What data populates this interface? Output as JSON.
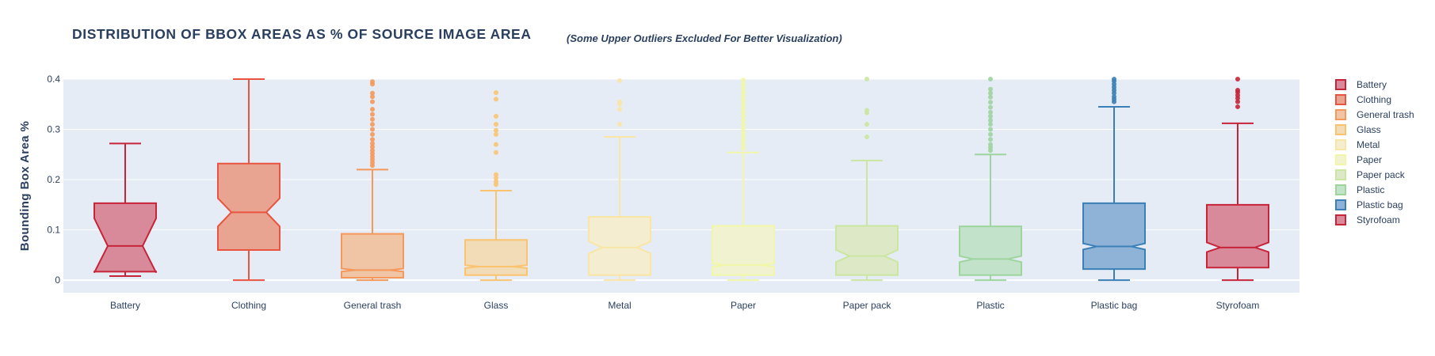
{
  "chart_data": {
    "type": "box",
    "title": "DISTRIBUTION OF BBOX AREAS AS % OF SOURCE IMAGE AREA",
    "subtitle": "(Some Upper Outliers Excluded For Better Visualization)",
    "ylabel": "Bounding Box Area %",
    "xlabel": "",
    "ylim": [
      -0.025,
      0.4
    ],
    "yticks": [
      0,
      0.1,
      0.2,
      0.3,
      0.4
    ],
    "ytick_labels": [
      "0",
      "0.1",
      "0.2",
      "0.3",
      "0.4"
    ],
    "notched": true,
    "grid": true,
    "legend_position": "right",
    "categories": [
      "Battery",
      "Clothing",
      "General trash",
      "Glass",
      "Metal",
      "Paper",
      "Paper pack",
      "Plastic",
      "Plastic bag",
      "Styrofoam"
    ],
    "series": [
      {
        "name": "Battery",
        "color": "#c7243a",
        "fill": "#d98a9a",
        "fill_opacity": 1.0,
        "min": 0.008,
        "q1": 0.017,
        "median": 0.068,
        "q3": 0.153,
        "max": 0.272,
        "notch_low": 0.015,
        "notch_high": 0.123,
        "outliers": []
      },
      {
        "name": "Clothing",
        "color": "#e8543f",
        "fill": "#e9a391",
        "fill_opacity": 1.0,
        "min": 0.0,
        "q1": 0.06,
        "median": 0.135,
        "q3": 0.232,
        "max": 0.4,
        "notch_low": 0.107,
        "notch_high": 0.163,
        "outliers": []
      },
      {
        "name": "General trash",
        "color": "#f5985a",
        "fill": "#efc5a5",
        "fill_opacity": 1.0,
        "min": 0.0,
        "q1": 0.005,
        "median": 0.02,
        "q3": 0.092,
        "max": 0.22,
        "notch_low": 0.017,
        "notch_high": 0.023,
        "outliers": [
          0.228,
          0.234,
          0.24,
          0.246,
          0.252,
          0.258,
          0.265,
          0.272,
          0.28,
          0.29,
          0.3,
          0.31,
          0.32,
          0.33,
          0.34,
          0.355,
          0.365,
          0.372,
          0.39,
          0.395
        ]
      },
      {
        "name": "Glass",
        "color": "#fcc36e",
        "fill": "#f2dcb8",
        "fill_opacity": 1.0,
        "min": 0.0,
        "q1": 0.01,
        "median": 0.027,
        "q3": 0.08,
        "max": 0.178,
        "notch_low": 0.024,
        "notch_high": 0.03,
        "outliers": [
          0.19,
          0.196,
          0.203,
          0.21,
          0.254,
          0.27,
          0.29,
          0.298,
          0.31,
          0.326,
          0.36,
          0.373
        ]
      },
      {
        "name": "Metal",
        "color": "#f9e6a4",
        "fill": "#f5edcf",
        "fill_opacity": 1.0,
        "min": 0.0,
        "q1": 0.01,
        "median": 0.065,
        "q3": 0.126,
        "max": 0.285,
        "notch_low": 0.053,
        "notch_high": 0.077,
        "outliers": [
          0.31,
          0.34,
          0.35,
          0.355,
          0.397
        ]
      },
      {
        "name": "Paper",
        "color": "#f1f7a6",
        "fill": "#f1f3d0",
        "fill_opacity": 1.0,
        "min": 0.0,
        "q1": 0.01,
        "median": 0.03,
        "q3": 0.108,
        "max": 0.254,
        "notch_low": 0.027,
        "notch_high": 0.033,
        "outliers": [
          0.262,
          0.27,
          0.278,
          0.286,
          0.294,
          0.302,
          0.31,
          0.318,
          0.326,
          0.334,
          0.342,
          0.35,
          0.358,
          0.366,
          0.374,
          0.382,
          0.39,
          0.398
        ]
      },
      {
        "name": "Paper pack",
        "color": "#cbe6a0",
        "fill": "#dde8c6",
        "fill_opacity": 1.0,
        "min": 0.0,
        "q1": 0.01,
        "median": 0.048,
        "q3": 0.108,
        "max": 0.238,
        "notch_low": 0.036,
        "notch_high": 0.06,
        "outliers": [
          0.285,
          0.31,
          0.333,
          0.338,
          0.4
        ]
      },
      {
        "name": "Plastic",
        "color": "#9dd59d",
        "fill": "#c2e2ca",
        "fill_opacity": 1.0,
        "min": 0.0,
        "q1": 0.01,
        "median": 0.042,
        "q3": 0.107,
        "max": 0.25,
        "notch_low": 0.036,
        "notch_high": 0.048,
        "outliers": [
          0.258,
          0.264,
          0.27,
          0.28,
          0.29,
          0.3,
          0.31,
          0.318,
          0.326,
          0.334,
          0.344,
          0.354,
          0.364,
          0.372,
          0.38,
          0.4
        ]
      },
      {
        "name": "Plastic bag",
        "color": "#3b7fb7",
        "fill": "#8fb3d7",
        "fill_opacity": 1.0,
        "min": 0.0,
        "q1": 0.022,
        "median": 0.067,
        "q3": 0.153,
        "max": 0.345,
        "notch_low": 0.061,
        "notch_high": 0.073,
        "outliers": [
          0.355,
          0.36,
          0.365,
          0.372,
          0.378,
          0.384,
          0.39,
          0.396,
          0.4
        ]
      },
      {
        "name": "Styrofoam",
        "color": "#c7243a",
        "fill": "#d98a9a",
        "fill_opacity": 1.0,
        "min": 0.0,
        "q1": 0.025,
        "median": 0.065,
        "q3": 0.15,
        "max": 0.312,
        "notch_low": 0.056,
        "notch_high": 0.075,
        "outliers": [
          0.345,
          0.355,
          0.362,
          0.368,
          0.374,
          0.378,
          0.4
        ]
      }
    ]
  }
}
